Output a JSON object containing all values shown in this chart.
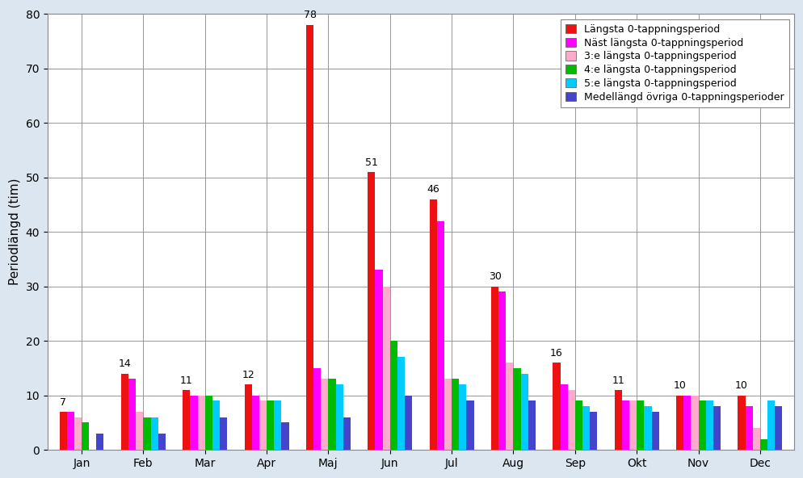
{
  "months": [
    "Jan",
    "Feb",
    "Mar",
    "Apr",
    "Maj",
    "Jun",
    "Jul",
    "Aug",
    "Sep",
    "Okt",
    "Nov",
    "Dec"
  ],
  "series": {
    "Längsta 0-tappningsperiod": [
      7,
      14,
      11,
      12,
      78,
      51,
      46,
      30,
      16,
      11,
      10,
      10
    ],
    "Näst längsta 0-tappningsperiod": [
      7,
      13,
      10,
      10,
      15,
      33,
      42,
      29,
      12,
      9,
      10,
      8
    ],
    "3:e längsta 0-tappningsperiod": [
      6,
      7,
      10,
      9,
      13,
      30,
      13,
      16,
      11,
      9,
      10,
      4
    ],
    "4:e längsta 0-tappningsperiod": [
      5,
      6,
      10,
      9,
      13,
      20,
      13,
      15,
      9,
      9,
      9,
      2
    ],
    "5:e längsta 0-tappningsperiod": [
      0,
      6,
      9,
      9,
      12,
      17,
      12,
      14,
      8,
      8,
      9,
      9
    ],
    "Medellängd övriga 0-tappningsperioder": [
      3,
      3,
      6,
      5,
      6,
      10,
      9,
      9,
      7,
      7,
      8,
      8
    ]
  },
  "colors": [
    "#ee1111",
    "#ff00ff",
    "#ffaacc",
    "#00bb00",
    "#00ccff",
    "#4444cc"
  ],
  "top_labels": [
    7,
    14,
    11,
    12,
    78,
    51,
    46,
    30,
    16,
    11,
    10,
    10
  ],
  "ylabel": "Periodlängd (tim)",
  "ylim": [
    0,
    80
  ],
  "yticks": [
    0,
    10,
    20,
    30,
    40,
    50,
    60,
    70,
    80
  ],
  "legend_labels": [
    "Längsta 0-tappningsperiod",
    "Näst längsta 0-tappningsperiod",
    "3:e längsta 0-tappningsperiod",
    "4:e längsta 0-tappningsperiod",
    "5:e längsta 0-tappningsperiod",
    "Medellängd övriga 0-tappningsperioder"
  ],
  "background_color": "#ffffff",
  "figure_bg": "#dce6f0",
  "grid_color": "#000000",
  "axis_fontsize": 11,
  "tick_fontsize": 10,
  "label_fontsize": 9
}
